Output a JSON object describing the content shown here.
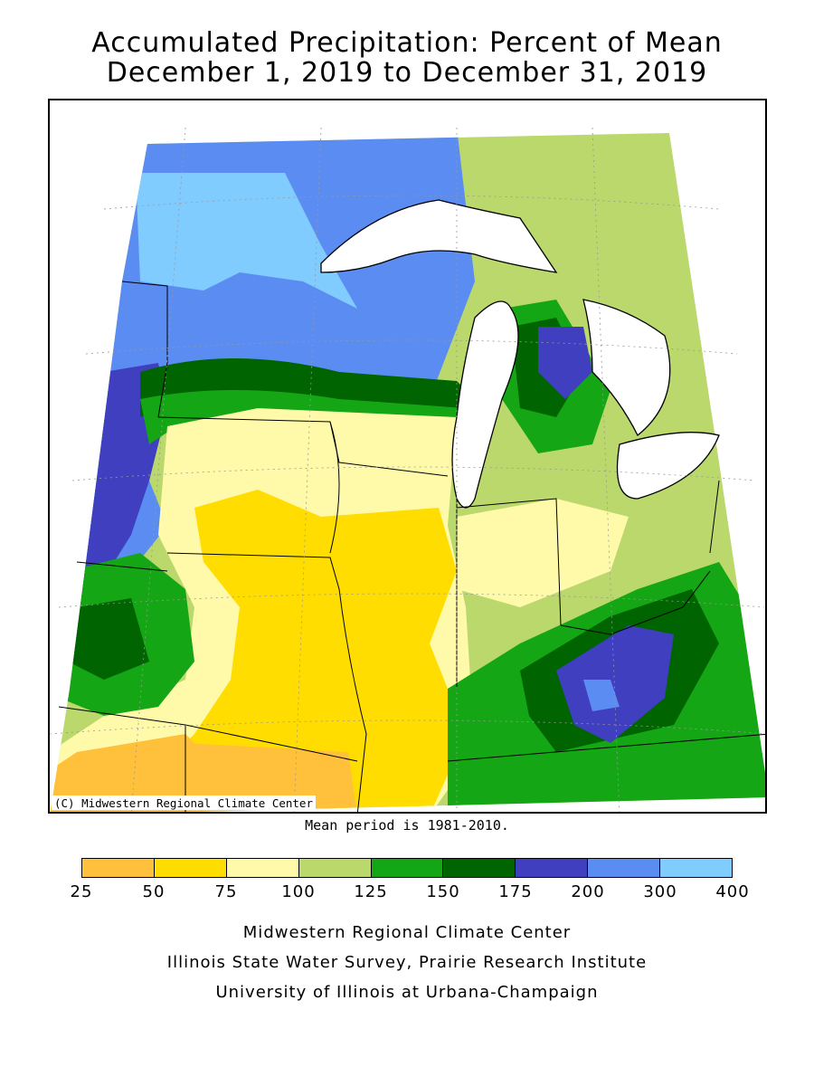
{
  "title": {
    "line1": "Accumulated Precipitation: Percent of Mean",
    "line2": "December 1, 2019 to December 31, 2019"
  },
  "map": {
    "copyright": "(C) Midwestern Regional Climate Center",
    "region": "Upper Midwest / Great Lakes",
    "icons": [
      "lake-superior",
      "lake-michigan",
      "lake-huron",
      "lake-erie"
    ]
  },
  "mean_note": "Mean period is 1981-2010.",
  "legend": {
    "bins": [
      {
        "min": 25,
        "max": 50,
        "color": "#FFC13B"
      },
      {
        "min": 50,
        "max": 75,
        "color": "#FFDD00"
      },
      {
        "min": 75,
        "max": 100,
        "color": "#FFFAAA"
      },
      {
        "min": 100,
        "max": 125,
        "color": "#BAD86C"
      },
      {
        "min": 125,
        "max": 150,
        "color": "#14A614"
      },
      {
        "min": 150,
        "max": 175,
        "color": "#006400"
      },
      {
        "min": 175,
        "max": 200,
        "color": "#3F3FBF"
      },
      {
        "min": 200,
        "max": 300,
        "color": "#5A8CF2"
      },
      {
        "min": 300,
        "max": 400,
        "color": "#80CCFF"
      }
    ],
    "labels": [
      "25",
      "50",
      "75",
      "100",
      "125",
      "150",
      "175",
      "200",
      "300",
      "400"
    ]
  },
  "credits": {
    "line1": "Midwestern Regional Climate Center",
    "line2": "Illinois State Water Survey, Prairie Research Institute",
    "line3": "University of Illinois at Urbana-Champaign"
  }
}
